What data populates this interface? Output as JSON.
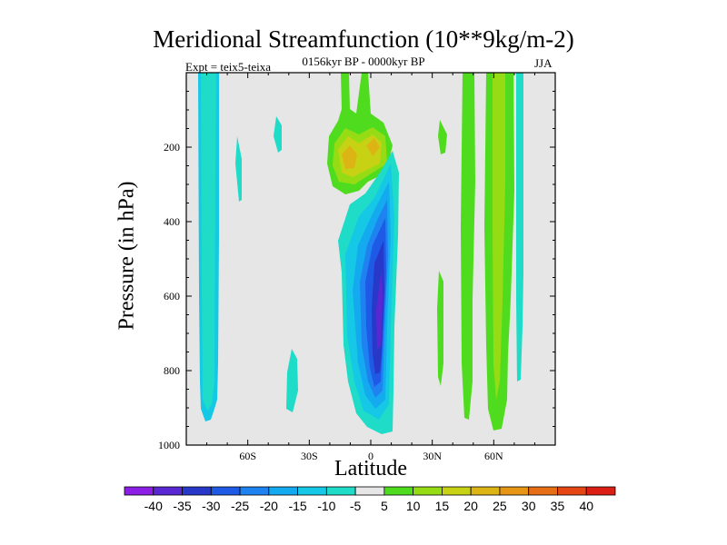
{
  "chart_data": {
    "type": "contour",
    "title": "Meridional Streamfunction (10**9kg/m-2)",
    "subtitle": "0156kyr BP - 0000kyr BP",
    "left_label": "Expt = teix5-teixa",
    "right_label": "JJA",
    "xlabel": "Latitude",
    "ylabel": "Pressure (in hPa)",
    "xlim": [
      -90,
      90
    ],
    "ylim": [
      1000,
      0
    ],
    "x_ticks": [
      -60,
      -30,
      0,
      30,
      60
    ],
    "x_tick_labels": [
      "60S",
      "30S",
      "0",
      "30N",
      "60N"
    ],
    "y_ticks": [
      200,
      400,
      600,
      800,
      1000
    ],
    "y_tick_labels": [
      "200",
      "400",
      "600",
      "800",
      "1000"
    ],
    "colorbar": {
      "levels": [
        -40,
        -35,
        -30,
        -25,
        -20,
        -15,
        -10,
        -5,
        5,
        10,
        15,
        20,
        25,
        30,
        35,
        40
      ],
      "labels": [
        "-40",
        "-35",
        "-30",
        "-25",
        "-20",
        "-15",
        "-10",
        "-5",
        "5",
        "10",
        "15",
        "20",
        "25",
        "30",
        "35",
        "40"
      ],
      "colors": [
        "#8c1ee6",
        "#5a28d2",
        "#2838c8",
        "#1e5ae6",
        "#1e82f0",
        "#14aaf0",
        "#14c8e6",
        "#1edcc8",
        "#e6e6e6",
        "#50dc1e",
        "#96dc14",
        "#c8d214",
        "#dcb414",
        "#e69614",
        "#e66e14",
        "#e64614",
        "#dc1e14"
      ]
    },
    "features": [
      {
        "name": "southern polar cell",
        "kind": "negative",
        "lat_range": [
          -78,
          -73
        ],
        "p_range": [
          0,
          930
        ],
        "value": -10
      },
      {
        "name": "southern weak cell 1",
        "kind": "negative",
        "lat_range": [
          -66,
          -64
        ],
        "p_range": [
          220,
          340
        ],
        "value": -10
      },
      {
        "name": "southern weak cell 2",
        "kind": "negative",
        "lat_range": [
          -43,
          -40
        ],
        "p_range": [
          100,
          210
        ],
        "value": -10
      },
      {
        "name": "southern lower cell",
        "kind": "negative",
        "lat_range": [
          -40,
          -36
        ],
        "p_range": [
          730,
          900
        ],
        "value": -10
      },
      {
        "name": "tropical negative cell",
        "kind": "negative",
        "lat_range": [
          -15,
          12
        ],
        "p_range": [
          220,
          970
        ],
        "value": -35
      },
      {
        "name": "upper tropical positive cell",
        "kind": "positive",
        "lat_range": [
          -19,
          8
        ],
        "p_range": [
          120,
          290
        ],
        "value": 20
      },
      {
        "name": "northern column 1",
        "kind": "positive",
        "lat_range": [
          35,
          38
        ],
        "p_range": [
          520,
          900
        ],
        "value": 5
      },
      {
        "name": "northern column 2",
        "kind": "positive",
        "lat_range": [
          46,
          51
        ],
        "p_range": [
          0,
          920
        ],
        "value": 10
      },
      {
        "name": "northern column 3",
        "kind": "positive",
        "lat_range": [
          59,
          67
        ],
        "p_range": [
          0,
          960
        ],
        "value": 10
      },
      {
        "name": "northern polar cell",
        "kind": "negative",
        "lat_range": [
          71,
          74
        ],
        "p_range": [
          0,
          830
        ],
        "value": -10
      }
    ]
  }
}
